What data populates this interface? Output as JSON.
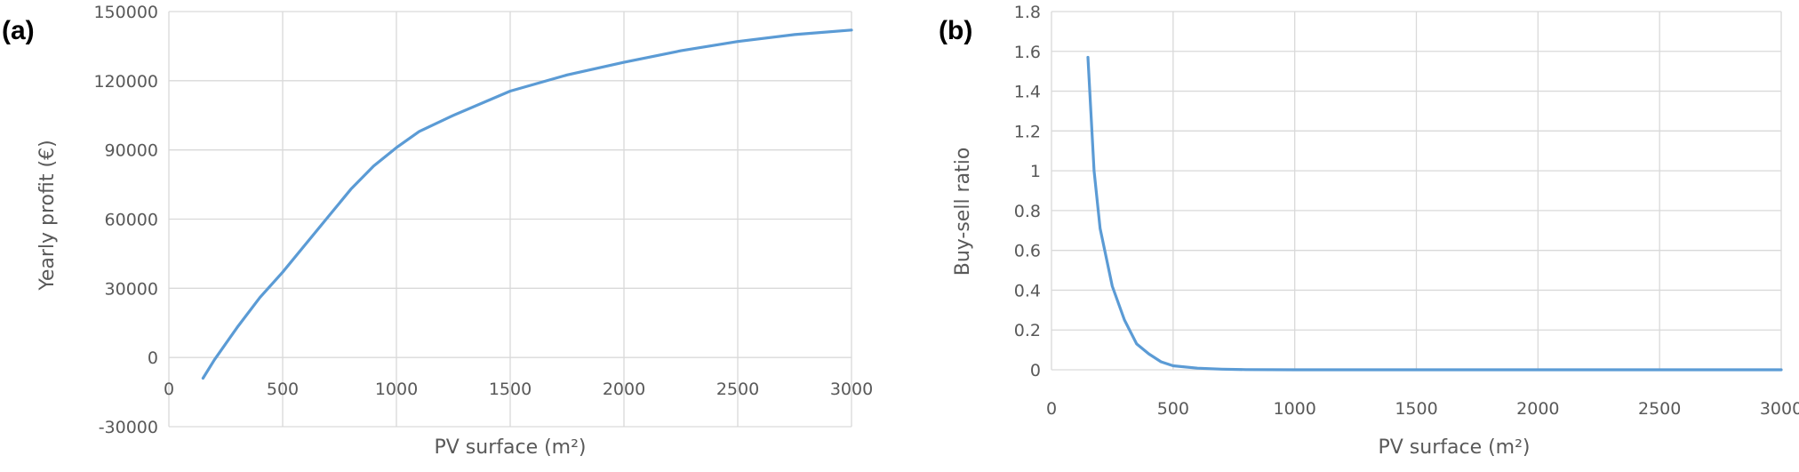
{
  "chart_data": [
    {
      "panel_label": "(a)",
      "type": "line",
      "xlabel": "PV surface (m²)",
      "ylabel": "Yearly profit (€)",
      "xlim": [
        0,
        3000
      ],
      "ylim": [
        -30000,
        150000
      ],
      "x_ticks": [
        "0",
        "500",
        "1000",
        "1500",
        "2000",
        "2500",
        "3000"
      ],
      "y_ticks": [
        "-30000",
        "0",
        "30000",
        "60000",
        "90000",
        "120000",
        "150000"
      ],
      "grid": true,
      "legend": "none",
      "series_color": "#5b9bd5",
      "x": [
        150,
        200,
        300,
        400,
        500,
        600,
        700,
        800,
        900,
        1000,
        1100,
        1250,
        1500,
        1750,
        2000,
        2250,
        2500,
        2750,
        3000
      ],
      "y": [
        -9000,
        -1000,
        13000,
        26000,
        37000,
        49000,
        61000,
        73000,
        83000,
        91000,
        98000,
        105000,
        115500,
        122500,
        128000,
        133000,
        137000,
        140000,
        142000
      ]
    },
    {
      "panel_label": "(b)",
      "type": "line",
      "xlabel": "PV surface (m²)",
      "ylabel": "Buy-sell ratio",
      "xlim": [
        0,
        3000
      ],
      "ylim": [
        0,
        1.8
      ],
      "x_ticks": [
        "0",
        "500",
        "1000",
        "1500",
        "2000",
        "2500",
        "3000"
      ],
      "y_ticks": [
        "0",
        "0.2",
        "0.4",
        "0.6",
        "0.8",
        "1",
        "1.2",
        "1.4",
        "1.6",
        "1.8"
      ],
      "grid": true,
      "legend": "none",
      "series_color": "#5b9bd5",
      "x": [
        150,
        175,
        200,
        250,
        300,
        350,
        400,
        450,
        500,
        600,
        700,
        800,
        1000,
        1500,
        2000,
        2500,
        3000
      ],
      "y": [
        1.57,
        1.0,
        0.71,
        0.42,
        0.25,
        0.13,
        0.08,
        0.04,
        0.02,
        0.008,
        0.003,
        0.001,
        0,
        0,
        0,
        0,
        0
      ]
    }
  ]
}
